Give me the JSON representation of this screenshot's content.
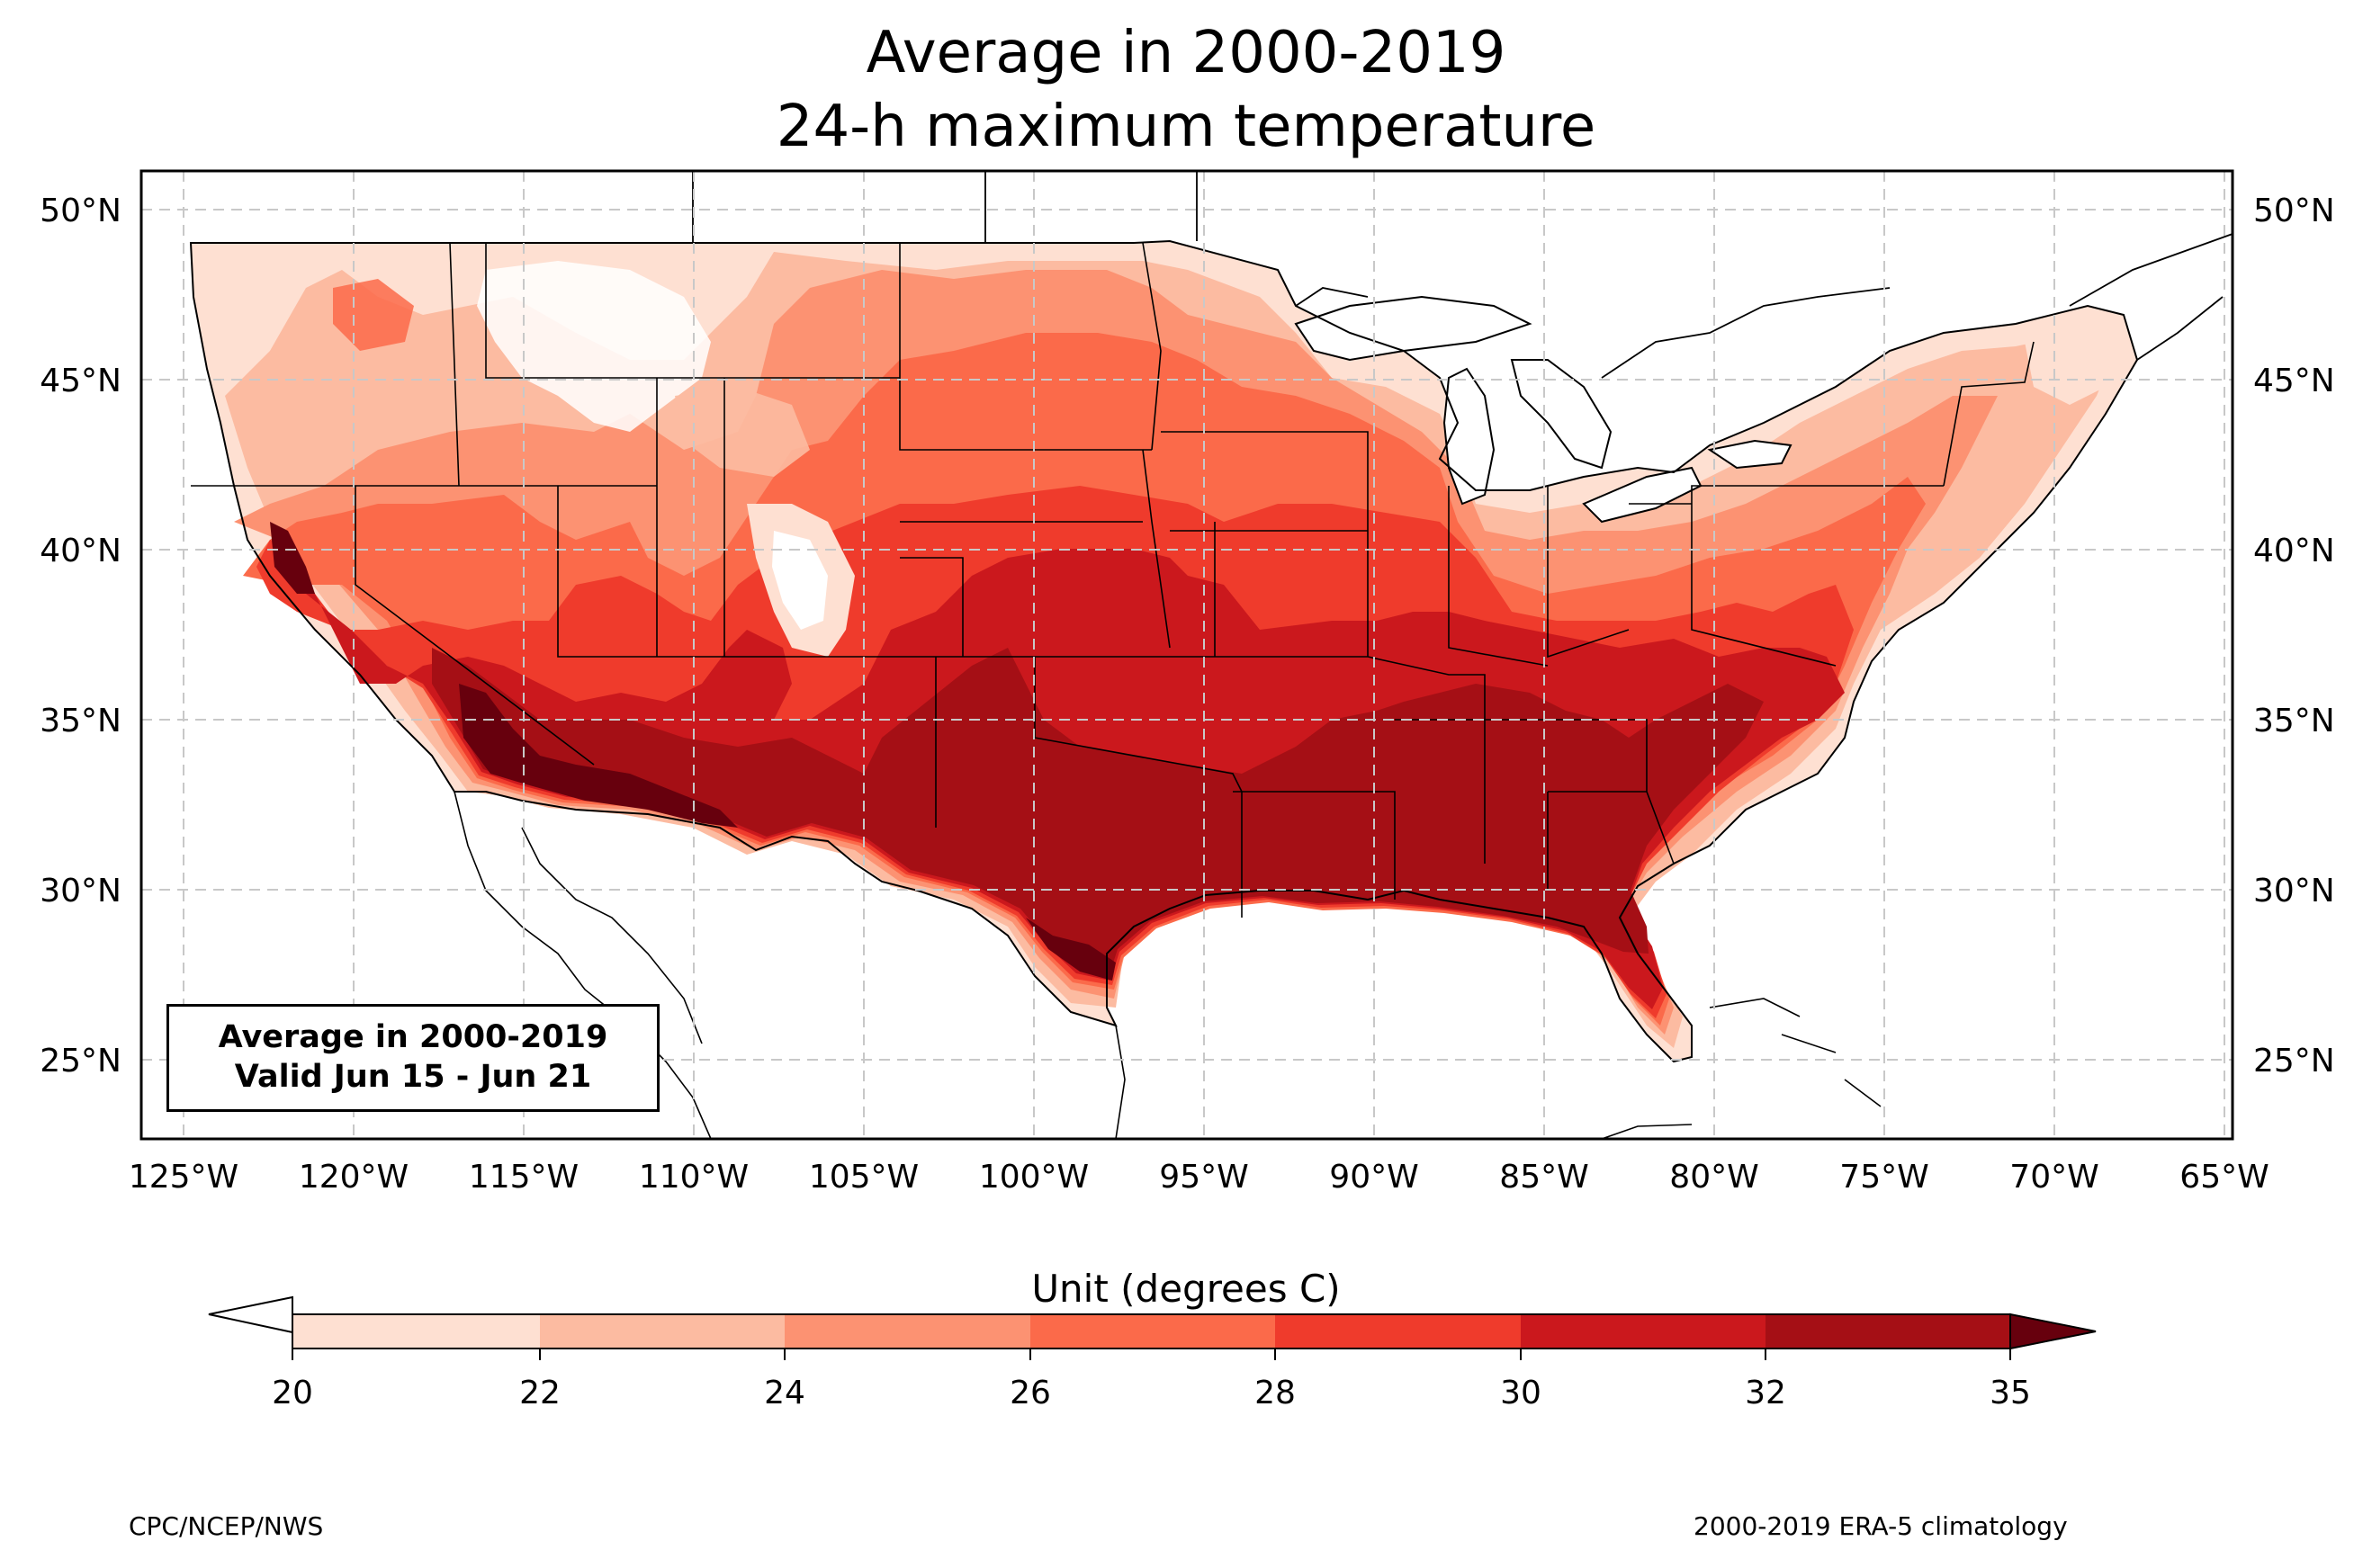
{
  "title": {
    "line1": "Average in 2000-2019",
    "line2": "24-h maximum temperature"
  },
  "inset": {
    "line1": "Average in 2000-2019",
    "line2": "Valid Jun 15 - Jun 21"
  },
  "axes": {
    "lon_labels": [
      "125°W",
      "120°W",
      "115°W",
      "110°W",
      "105°W",
      "100°W",
      "95°W",
      "90°W",
      "85°W",
      "80°W",
      "75°W",
      "70°W",
      "65°W"
    ],
    "lat_labels": [
      "50°N",
      "45°N",
      "40°N",
      "35°N",
      "30°N",
      "25°N"
    ],
    "grid": "dashed"
  },
  "colorbar": {
    "unit_label": "Unit (degrees C)",
    "tick_labels": [
      "20",
      "22",
      "24",
      "26",
      "28",
      "30",
      "32",
      "35"
    ],
    "levels": [
      20,
      22,
      24,
      26,
      28,
      30,
      32,
      35
    ],
    "colors": [
      "#fee0d2",
      "#fcbba1",
      "#fc9272",
      "#fb6a4a",
      "#ef3b2c",
      "#cb181d",
      "#a50f15",
      "#67000d"
    ],
    "under_color": "#ffffff",
    "over_color": "#67000d"
  },
  "footer": {
    "left": "CPC/NCEP/NWS",
    "right": "2000-2019 ERA-5 climatology"
  }
}
